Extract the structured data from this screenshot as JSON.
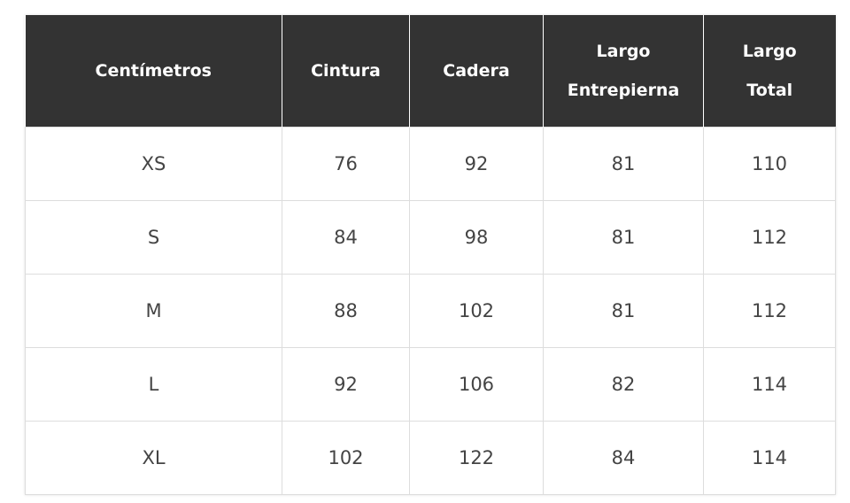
{
  "table": {
    "header": [
      "Centímetros",
      "Cintura",
      "Cadera",
      "Largo Entrepierna",
      "Largo Total"
    ],
    "rows": [
      [
        "XS",
        76,
        92,
        81,
        110
      ],
      [
        "S",
        84,
        98,
        81,
        112
      ],
      [
        "M",
        88,
        102,
        81,
        112
      ],
      [
        "L",
        92,
        106,
        82,
        114
      ],
      [
        "XL",
        102,
        122,
        84,
        114
      ]
    ]
  }
}
